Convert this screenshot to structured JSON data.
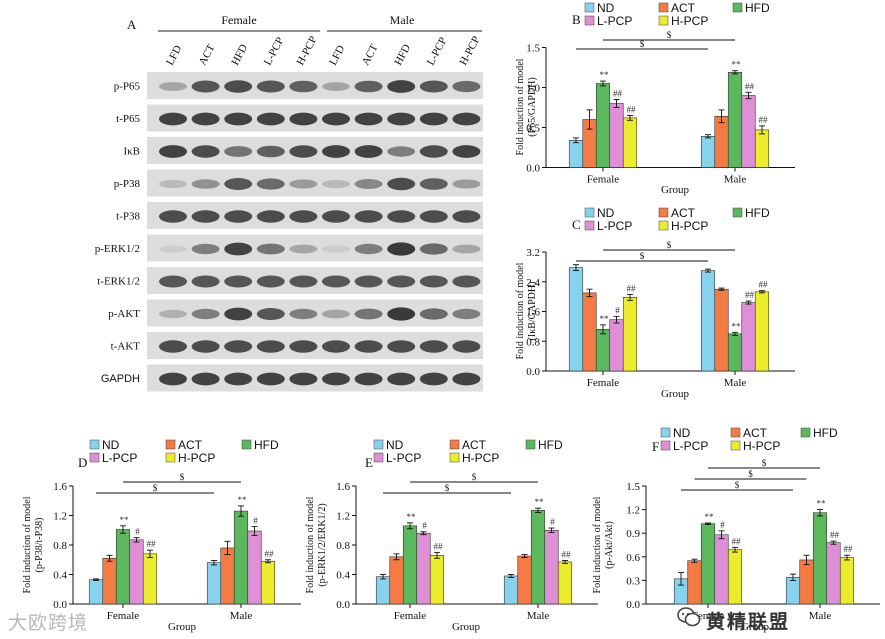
{
  "colors": {
    "ND": "#87d3ee",
    "ACT": "#f57b45",
    "HFD": "#5cb85c",
    "L-PCP": "#de8fd6",
    "H-PCP": "#eaec2c"
  },
  "legend_labels": [
    "ND",
    "ACT",
    "HFD",
    "L-PCP",
    "H-PCP"
  ],
  "blot": {
    "panel_letter": "A",
    "groups": [
      "Female",
      "Male"
    ],
    "lanes": [
      "LFD",
      "ACT",
      "HFD",
      "L-PCP",
      "H-PCP",
      "LFD",
      "ACT",
      "HFD",
      "L-PCP",
      "H-PCP"
    ],
    "rows": [
      "p-P65",
      "t-P65",
      "IκB",
      "p-P38",
      "t-P38",
      "p-ERK1/2",
      "t-ERK1/2",
      "p-AKT",
      "t-AKT",
      "GAPDH"
    ],
    "intensity": [
      [
        0.35,
        0.75,
        0.8,
        0.75,
        0.7,
        0.35,
        0.7,
        0.85,
        0.75,
        0.65
      ],
      [
        0.85,
        0.85,
        0.85,
        0.85,
        0.85,
        0.85,
        0.85,
        0.85,
        0.85,
        0.85
      ],
      [
        0.85,
        0.8,
        0.6,
        0.7,
        0.8,
        0.85,
        0.85,
        0.55,
        0.8,
        0.85
      ],
      [
        0.25,
        0.45,
        0.75,
        0.65,
        0.4,
        0.25,
        0.5,
        0.8,
        0.7,
        0.4
      ],
      [
        0.8,
        0.8,
        0.8,
        0.8,
        0.8,
        0.8,
        0.8,
        0.8,
        0.8,
        0.8
      ],
      [
        0.15,
        0.55,
        0.85,
        0.6,
        0.35,
        0.15,
        0.55,
        0.9,
        0.65,
        0.35
      ],
      [
        0.75,
        0.75,
        0.75,
        0.75,
        0.75,
        0.75,
        0.75,
        0.75,
        0.75,
        0.75
      ],
      [
        0.3,
        0.55,
        0.85,
        0.75,
        0.55,
        0.35,
        0.6,
        0.9,
        0.65,
        0.55
      ],
      [
        0.8,
        0.8,
        0.8,
        0.8,
        0.8,
        0.8,
        0.8,
        0.8,
        0.8,
        0.8
      ],
      [
        0.85,
        0.85,
        0.85,
        0.85,
        0.85,
        0.85,
        0.85,
        0.85,
        0.85,
        0.85
      ]
    ]
  },
  "chart_data": [
    {
      "panel_letter": "B",
      "type": "bar",
      "categories": [
        "Female",
        "Male"
      ],
      "series": [
        {
          "name": "ND",
          "values": [
            0.34,
            0.39
          ],
          "errors": [
            0.03,
            0.02
          ]
        },
        {
          "name": "ACT",
          "values": [
            0.6,
            0.64
          ],
          "errors": [
            0.12,
            0.08
          ]
        },
        {
          "name": "HFD",
          "values": [
            1.05,
            1.19
          ],
          "errors": [
            0.03,
            0.02
          ]
        },
        {
          "name": "L-PCP",
          "values": [
            0.8,
            0.9
          ],
          "errors": [
            0.05,
            0.04
          ]
        },
        {
          "name": "H-PCP",
          "values": [
            0.62,
            0.47
          ],
          "errors": [
            0.03,
            0.05
          ]
        }
      ],
      "annotations": [
        {
          "series": "HFD",
          "category": "Female",
          "text": "**"
        },
        {
          "series": "L-PCP",
          "category": "Female",
          "text": "##"
        },
        {
          "series": "H-PCP",
          "category": "Female",
          "text": "##"
        },
        {
          "series": "HFD",
          "category": "Male",
          "text": "**"
        },
        {
          "series": "L-PCP",
          "category": "Male",
          "text": "##"
        },
        {
          "series": "H-PCP",
          "category": "Male",
          "text": "##"
        }
      ],
      "brackets": [
        {
          "from": [
            "ND",
            "Female"
          ],
          "to": [
            "ND",
            "Male"
          ],
          "level": 0,
          "label": "$"
        },
        {
          "from": [
            "HFD",
            "Female"
          ],
          "to": [
            "HFD",
            "Male"
          ],
          "level": 1,
          "label": "$"
        }
      ],
      "xlabel": "Group",
      "ylabel": [
        "Fold induction of model",
        "(P65/GAPDH)"
      ],
      "ylim": [
        0,
        1.5
      ],
      "yticks": [
        0.0,
        0.5,
        1.0,
        1.5
      ],
      "tick_decimals": 1
    },
    {
      "panel_letter": "C",
      "type": "bar",
      "categories": [
        "Female",
        "Male"
      ],
      "series": [
        {
          "name": "ND",
          "values": [
            2.78,
            2.7
          ],
          "errors": [
            0.08,
            0.04
          ]
        },
        {
          "name": "ACT",
          "values": [
            2.1,
            2.2
          ],
          "errors": [
            0.1,
            0.03
          ]
        },
        {
          "name": "HFD",
          "values": [
            1.12,
            1.0
          ],
          "errors": [
            0.12,
            0.04
          ]
        },
        {
          "name": "L-PCP",
          "values": [
            1.38,
            1.84
          ],
          "errors": [
            0.09,
            0.04
          ]
        },
        {
          "name": "H-PCP",
          "values": [
            1.98,
            2.13
          ],
          "errors": [
            0.08,
            0.03
          ]
        }
      ],
      "annotations": [
        {
          "series": "HFD",
          "category": "Female",
          "text": "**"
        },
        {
          "series": "L-PCP",
          "category": "Female",
          "text": "#"
        },
        {
          "series": "H-PCP",
          "category": "Female",
          "text": "##"
        },
        {
          "series": "HFD",
          "category": "Male",
          "text": "**"
        },
        {
          "series": "L-PCP",
          "category": "Male",
          "text": "##"
        },
        {
          "series": "H-PCP",
          "category": "Male",
          "text": "##"
        }
      ],
      "brackets": [
        {
          "from": [
            "ND",
            "Female"
          ],
          "to": [
            "ND",
            "Male"
          ],
          "level": 0,
          "label": "$"
        },
        {
          "from": [
            "HFD",
            "Female"
          ],
          "to": [
            "HFD",
            "Male"
          ],
          "level": 1,
          "label": "$"
        }
      ],
      "xlabel": "Group",
      "ylabel": [
        "Fold induction of model",
        "(IκB/GAPDH)"
      ],
      "ylim": [
        0,
        3.2
      ],
      "yticks": [
        0.0,
        0.8,
        1.6,
        2.4,
        3.2
      ],
      "tick_decimals": 1
    },
    {
      "panel_letter": "D",
      "type": "bar",
      "categories": [
        "Female",
        "Male"
      ],
      "series": [
        {
          "name": "ND",
          "values": [
            0.33,
            0.56
          ],
          "errors": [
            0.01,
            0.03
          ]
        },
        {
          "name": "ACT",
          "values": [
            0.62,
            0.76
          ],
          "errors": [
            0.04,
            0.09
          ]
        },
        {
          "name": "HFD",
          "values": [
            1.01,
            1.26
          ],
          "errors": [
            0.05,
            0.07
          ]
        },
        {
          "name": "L-PCP",
          "values": [
            0.87,
            0.99
          ],
          "errors": [
            0.03,
            0.06
          ]
        },
        {
          "name": "H-PCP",
          "values": [
            0.68,
            0.58
          ],
          "errors": [
            0.05,
            0.02
          ]
        }
      ],
      "annotations": [
        {
          "series": "HFD",
          "category": "Female",
          "text": "**"
        },
        {
          "series": "L-PCP",
          "category": "Female",
          "text": "#"
        },
        {
          "series": "H-PCP",
          "category": "Female",
          "text": "##"
        },
        {
          "series": "HFD",
          "category": "Male",
          "text": "**"
        },
        {
          "series": "L-PCP",
          "category": "Male",
          "text": "#"
        },
        {
          "series": "H-PCP",
          "category": "Male",
          "text": "##"
        }
      ],
      "brackets": [
        {
          "from": [
            "ND",
            "Female"
          ],
          "to": [
            "ND",
            "Male"
          ],
          "level": 0,
          "label": "$"
        },
        {
          "from": [
            "HFD",
            "Female"
          ],
          "to": [
            "HFD",
            "Male"
          ],
          "level": 1,
          "label": "$"
        }
      ],
      "xlabel": "Group",
      "ylabel": [
        "Fold induction of model",
        "(p-P38/t-P38)"
      ],
      "ylim": [
        0,
        1.6
      ],
      "yticks": [
        0.0,
        0.4,
        0.8,
        1.2,
        1.6
      ],
      "tick_decimals": 1
    },
    {
      "panel_letter": "E",
      "type": "bar",
      "categories": [
        "Female",
        "Male"
      ],
      "series": [
        {
          "name": "ND",
          "values": [
            0.37,
            0.38
          ],
          "errors": [
            0.03,
            0.02
          ]
        },
        {
          "name": "ACT",
          "values": [
            0.64,
            0.65
          ],
          "errors": [
            0.04,
            0.02
          ]
        },
        {
          "name": "HFD",
          "values": [
            1.06,
            1.27
          ],
          "errors": [
            0.04,
            0.03
          ]
        },
        {
          "name": "L-PCP",
          "values": [
            0.96,
            1.0
          ],
          "errors": [
            0.02,
            0.03
          ]
        },
        {
          "name": "H-PCP",
          "values": [
            0.66,
            0.57
          ],
          "errors": [
            0.04,
            0.02
          ]
        }
      ],
      "annotations": [
        {
          "series": "HFD",
          "category": "Female",
          "text": "**"
        },
        {
          "series": "L-PCP",
          "category": "Female",
          "text": "#"
        },
        {
          "series": "H-PCP",
          "category": "Female",
          "text": "##"
        },
        {
          "series": "HFD",
          "category": "Male",
          "text": "**"
        },
        {
          "series": "L-PCP",
          "category": "Male",
          "text": "#"
        },
        {
          "series": "H-PCP",
          "category": "Male",
          "text": "##"
        }
      ],
      "brackets": [
        {
          "from": [
            "ND",
            "Female"
          ],
          "to": [
            "ND",
            "Male"
          ],
          "level": 0,
          "label": "$"
        },
        {
          "from": [
            "HFD",
            "Female"
          ],
          "to": [
            "HFD",
            "Male"
          ],
          "level": 1,
          "label": "$"
        }
      ],
      "xlabel": "Group",
      "ylabel": [
        "Fold induction of model",
        "(p-ERK1/2/ERK1/2)"
      ],
      "ylim": [
        0,
        1.6
      ],
      "yticks": [
        0.0,
        0.4,
        0.8,
        1.2,
        1.6
      ],
      "tick_decimals": 1
    },
    {
      "panel_letter": "F",
      "type": "bar",
      "categories": [
        "Female",
        "Male"
      ],
      "series": [
        {
          "name": "ND",
          "values": [
            0.32,
            0.34
          ],
          "errors": [
            0.08,
            0.04
          ]
        },
        {
          "name": "ACT",
          "values": [
            0.55,
            0.56
          ],
          "errors": [
            0.02,
            0.06
          ]
        },
        {
          "name": "HFD",
          "values": [
            1.02,
            1.16
          ],
          "errors": [
            0.01,
            0.04
          ]
        },
        {
          "name": "L-PCP",
          "values": [
            0.88,
            0.78
          ],
          "errors": [
            0.05,
            0.02
          ]
        },
        {
          "name": "H-PCP",
          "values": [
            0.69,
            0.59
          ],
          "errors": [
            0.03,
            0.03
          ]
        }
      ],
      "annotations": [
        {
          "series": "HFD",
          "category": "Female",
          "text": "**"
        },
        {
          "series": "L-PCP",
          "category": "Female",
          "text": "#"
        },
        {
          "series": "H-PCP",
          "category": "Female",
          "text": "##"
        },
        {
          "series": "HFD",
          "category": "Male",
          "text": "**"
        },
        {
          "series": "L-PCP",
          "category": "Male",
          "text": "##"
        },
        {
          "series": "H-PCP",
          "category": "Male",
          "text": "##"
        }
      ],
      "brackets": [
        {
          "from": [
            "ND",
            "Female"
          ],
          "to": [
            "ND",
            "Male"
          ],
          "level": 0,
          "label": "$"
        },
        {
          "from": [
            "ACT",
            "Female"
          ],
          "to": [
            "ACT",
            "Male"
          ],
          "level": 1,
          "label": "$"
        },
        {
          "from": [
            "HFD",
            "Female"
          ],
          "to": [
            "HFD",
            "Male"
          ],
          "level": 2,
          "label": "$"
        }
      ],
      "xlabel": "Group",
      "ylabel": [
        "Fold induction of model",
        "(p-Akt/Akt)"
      ],
      "ylim": [
        0,
        1.5
      ],
      "yticks": [
        0.0,
        0.3,
        0.6,
        0.9,
        1.2,
        1.5
      ],
      "tick_decimals": 1
    }
  ],
  "watermark_left": "大欧跨境",
  "watermark_right": "黄精联盟"
}
